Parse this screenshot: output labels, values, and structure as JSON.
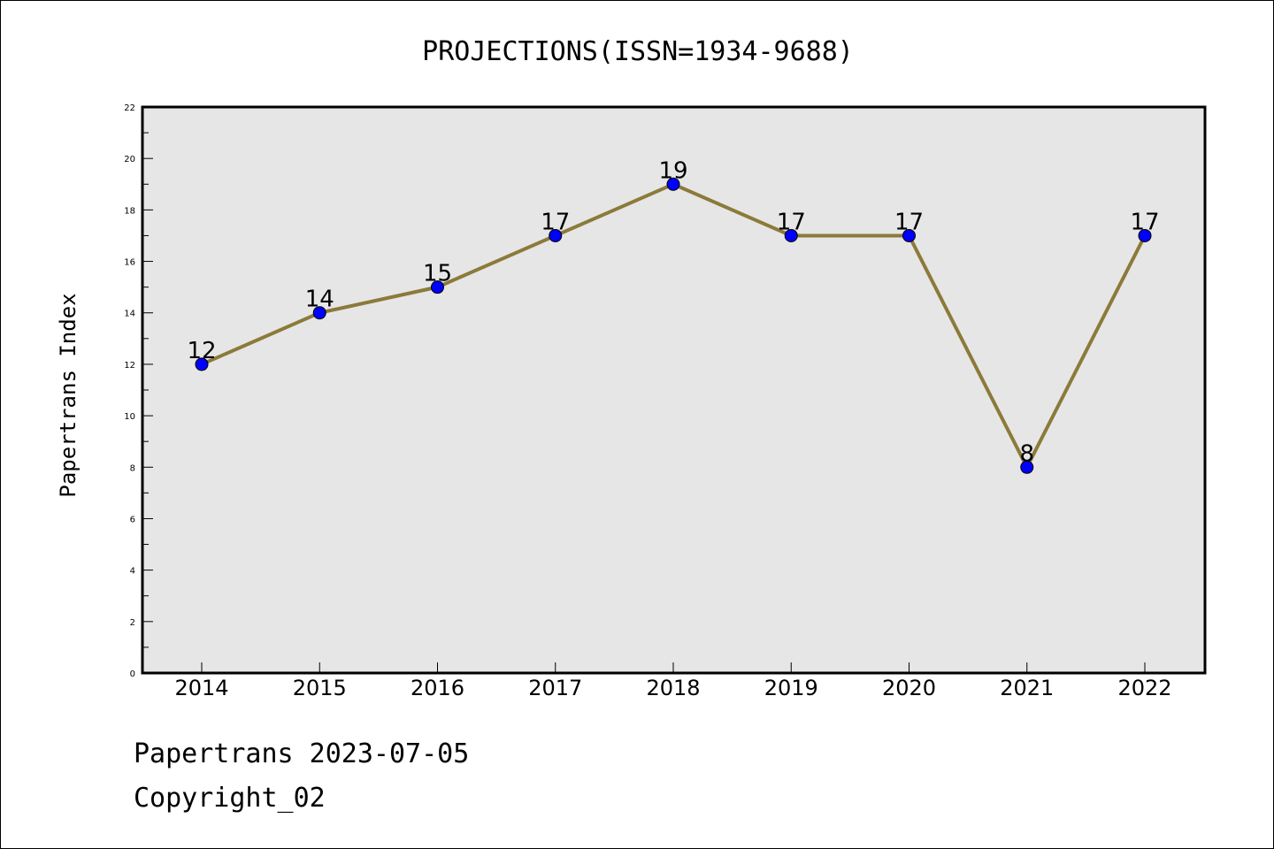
{
  "chart_data": {
    "type": "line",
    "title": "PROJECTIONS(ISSN=1934-9688)",
    "xlabel": "",
    "ylabel": "Papertrans Index",
    "categories": [
      "2014",
      "2015",
      "2016",
      "2017",
      "2018",
      "2019",
      "2020",
      "2021",
      "2022"
    ],
    "values": [
      12,
      14,
      15,
      17,
      19,
      17,
      17,
      8,
      17
    ],
    "data_labels": [
      "12",
      "14",
      "15",
      "17",
      "19",
      "17",
      "17",
      "8",
      "17"
    ],
    "ylim": [
      0,
      22
    ],
    "yticks": [
      0,
      2,
      4,
      6,
      8,
      10,
      12,
      14,
      16,
      18,
      20,
      22
    ],
    "grid": false,
    "legend": "none",
    "line_color": "#8b7a3a",
    "marker_color": "#0000ff",
    "plot_background": "#e6e6e6"
  },
  "footer": {
    "date_line": "Papertrans 2023-07-05",
    "copyright_line": "Copyright_02"
  }
}
